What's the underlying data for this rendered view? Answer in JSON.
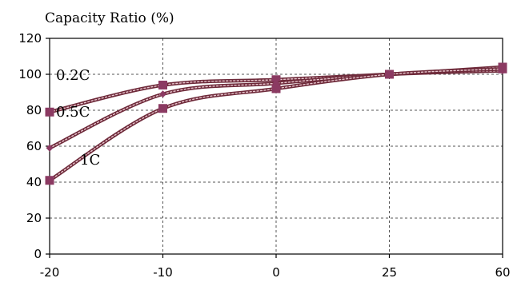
{
  "chart_data": {
    "type": "line",
    "title": "Capacity Ratio (%)",
    "xlabel": "",
    "ylabel": "",
    "categories": [
      "-20",
      "-10",
      "0",
      "25",
      "60"
    ],
    "yticks": [
      "0",
      "20",
      "40",
      "60",
      "80",
      "100",
      "120"
    ],
    "ylim": [
      0,
      120
    ],
    "grid": true,
    "legend": "inline-labels",
    "series": [
      {
        "name": "0.2C",
        "marker": "square",
        "values": [
          79,
          94,
          97,
          100,
          104
        ]
      },
      {
        "name": "0.5C",
        "marker": "diamond",
        "values": [
          59,
          89,
          95,
          100,
          102
        ]
      },
      {
        "name": "1C",
        "marker": "square",
        "values": [
          41,
          81,
          92,
          100,
          103
        ]
      }
    ],
    "colors": {
      "series": "#6e2a3a",
      "marker": "#8b3a62",
      "hatch": "#e9c7cf",
      "grid": "#555555"
    }
  }
}
